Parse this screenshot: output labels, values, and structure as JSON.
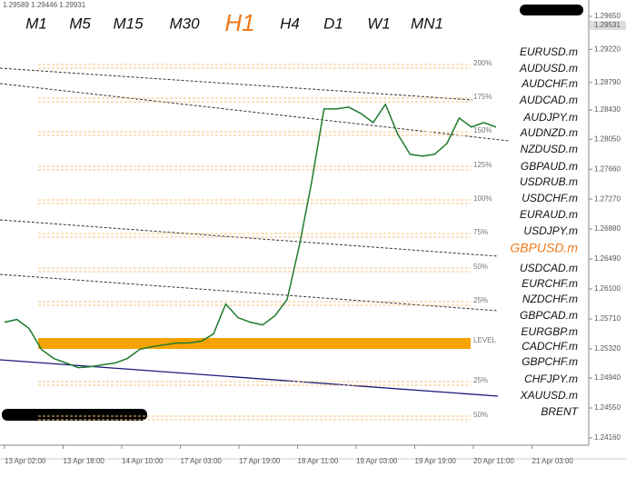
{
  "quote_line": "1.29589 1.29446 1.29931",
  "timeframes": [
    "M1",
    "M5",
    "M15",
    "M30",
    "H1",
    "H4",
    "D1",
    "W1",
    "MN1"
  ],
  "active_timeframe": "H1",
  "symbols": [
    "EURUSD.m",
    "AUDUSD.m",
    "AUDCHF.m",
    "AUDCAD.m",
    "AUDJPY.m",
    "AUDNZD.m",
    "NZDUSD.m",
    "GBPAUD.m",
    "USDRUB.m",
    "USDCHF.m",
    "EURAUD.m",
    "USDJPY.m",
    "GBPUSD.m",
    "USDCAD.m",
    "EURCHF.m",
    "NZDCHF.m",
    "GBPCAD.m",
    "EURGBP.m",
    "CADCHF.m",
    "GBPCHF.m",
    "CHFJPY.m",
    "XAUUSD.m",
    "BRENT"
  ],
  "active_symbol": "GBPUSD.m",
  "levels": [
    "200%",
    "175%",
    "150%",
    "125%",
    "100%",
    "75%",
    "50%",
    "25%",
    "LEVEL",
    "25%",
    "50%"
  ],
  "chart": {
    "ylim": [
      1.2416,
      1.2965
    ],
    "yticks": [
      {
        "value": 1.2965,
        "label": "1.29650"
      },
      {
        "value": 1.2922,
        "label": "1.29220"
      },
      {
        "value": 1.2879,
        "label": "1.28790"
      },
      {
        "value": 1.2843,
        "label": "1.28430"
      },
      {
        "value": 1.2805,
        "label": "1.28050"
      },
      {
        "value": 1.2766,
        "label": "1.27660"
      },
      {
        "value": 1.2727,
        "label": "1.27270"
      },
      {
        "value": 1.2688,
        "label": "1.26880"
      },
      {
        "value": 1.2649,
        "label": "1.26490"
      },
      {
        "value": 1.261,
        "label": "1.26100"
      },
      {
        "value": 1.2571,
        "label": "1.25710"
      },
      {
        "value": 1.2532,
        "label": "1.25320"
      },
      {
        "value": 1.2494,
        "label": "1.24940"
      },
      {
        "value": 1.2455,
        "label": "1.24550"
      },
      {
        "value": 1.2416,
        "label": "1.24160"
      }
    ],
    "current_price": {
      "value": 1.29531,
      "label": "1.29531"
    },
    "xticks": [
      "13 Apr 02:00",
      "13 Apr 18:00",
      "14 Apr 10:00",
      "17 Apr 03:00",
      "17 Apr 19:00",
      "18 Apr 11:00",
      "19 Apr 03:00",
      "19 Apr 19:00",
      "20 Apr 11:00",
      "21 Apr 03:00"
    ],
    "color": "#1f7a2e",
    "values": [
      1.25667,
      1.25703,
      1.25585,
      1.25313,
      1.25195,
      1.25136,
      1.25076,
      1.25088,
      1.25112,
      1.25136,
      1.25195,
      1.25313,
      1.25348,
      1.25372,
      1.25396,
      1.25396,
      1.25419,
      1.25514,
      1.25904,
      1.25726,
      1.25667,
      1.25632,
      1.2575,
      1.25963,
      1.26672,
      1.27499,
      1.28445,
      1.28445,
      1.28468,
      1.28385,
      1.28267,
      1.28504,
      1.28114,
      1.27854,
      1.2783,
      1.27854,
      1.27995,
      1.28326,
      1.28208,
      1.28267,
      1.28208
    ]
  }
}
